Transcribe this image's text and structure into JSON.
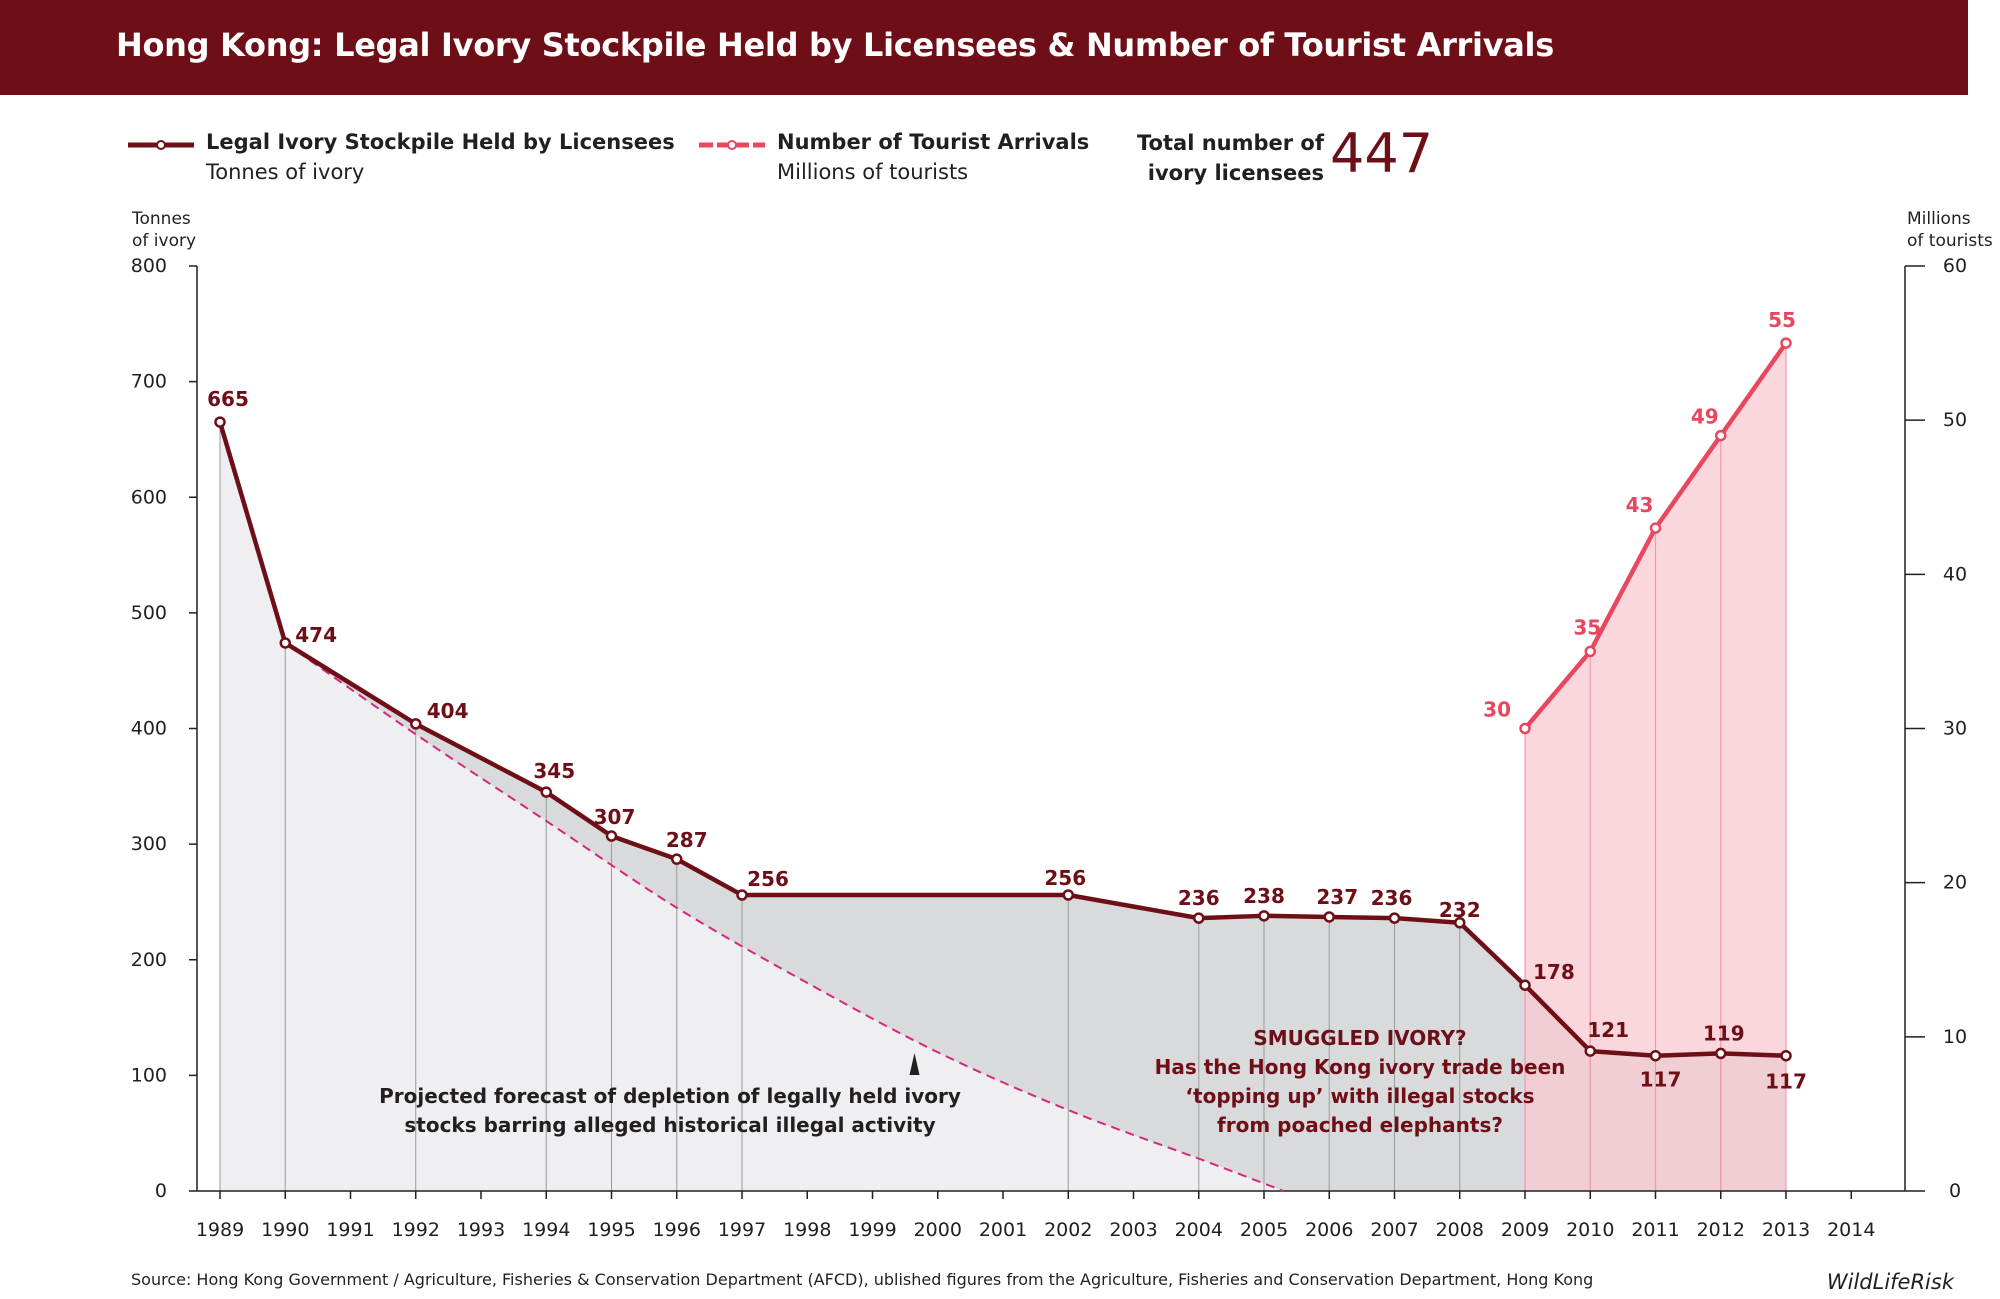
{
  "title": "Hong Kong: Legal Ivory Stockpile Held by Licensees & Number of Tourist Arrivals",
  "legend": {
    "stockpile_title": "Legal Ivory Stockpile Held by Licensees",
    "stockpile_unit": "Tonnes of ivory",
    "tourists_title": "Number of Tourist Arrivals",
    "tourists_unit": "Millions of tourists",
    "total_label_line1": "Total number of",
    "total_label_line2": "ivory licensees",
    "total_value": "447"
  },
  "axis_titles": {
    "left_line1": "Tonnes",
    "left_line2": "of ivory",
    "right_line1": "Millions",
    "right_line2": "of tourists"
  },
  "annotations": {
    "forecast_line1": "Projected forecast of depletion of legally held ivory",
    "forecast_line2": "stocks barring alleged historical illegal activity",
    "smuggled_line1": "SMUGGLED IVORY?",
    "smuggled_line2": "Has the Hong Kong ivory trade been",
    "smuggled_line3": "‘topping up’ with illegal stocks",
    "smuggled_line4": "from poached elephants?"
  },
  "source": "Source: Hong Kong Government / Agriculture, Fisheries & Conservation Department (AFCD), ublished figures from the Agriculture, Fisheries and Conservation Department, Hong Kong",
  "brand": "WildLifeRisk",
  "colors": {
    "banner": "#6e0f17",
    "stockpile": "#6e0f17",
    "tourists": "#e8475f",
    "forecast": "#d4287e",
    "stock_fill": "#d9dadc",
    "forecast_fill": "#efeff1",
    "tourist_fill": "#f8c9d0"
  },
  "chart_data": {
    "type": "line",
    "x_categories": [
      "1989",
      "1990",
      "1991",
      "1992",
      "1993",
      "1994",
      "1995",
      "1996",
      "1997",
      "1998",
      "1999",
      "2000",
      "2001",
      "2002",
      "2003",
      "2004",
      "2005",
      "2006",
      "2007",
      "2008",
      "2009",
      "2010",
      "2011",
      "2012",
      "2013",
      "2014"
    ],
    "y_left": {
      "label": "Tonnes of ivory",
      "range": [
        0,
        800
      ],
      "ticks": [
        0,
        100,
        200,
        300,
        400,
        500,
        600,
        700,
        800
      ]
    },
    "y_right": {
      "label": "Millions of tourists",
      "range": [
        0,
        60
      ],
      "ticks": [
        0,
        10,
        20,
        30,
        40,
        50,
        60
      ]
    },
    "series": [
      {
        "name": "Legal Ivory Stockpile Held by Licensees",
        "axis": "left",
        "points": [
          {
            "x": "1989",
            "y": 665
          },
          {
            "x": "1990",
            "y": 474
          },
          {
            "x": "1992",
            "y": 404
          },
          {
            "x": "1994",
            "y": 345
          },
          {
            "x": "1995",
            "y": 307
          },
          {
            "x": "1996",
            "y": 287
          },
          {
            "x": "1997",
            "y": 256
          },
          {
            "x": "2002",
            "y": 256
          },
          {
            "x": "2004",
            "y": 236
          },
          {
            "x": "2005",
            "y": 238
          },
          {
            "x": "2006",
            "y": 237
          },
          {
            "x": "2007",
            "y": 236
          },
          {
            "x": "2008",
            "y": 232
          },
          {
            "x": "2009",
            "y": 178
          },
          {
            "x": "2010",
            "y": 121
          },
          {
            "x": "2011",
            "y": 117
          },
          {
            "x": "2012",
            "y": 119
          },
          {
            "x": "2013",
            "y": 117
          }
        ]
      },
      {
        "name": "Number of Tourist Arrivals",
        "axis": "right",
        "points": [
          {
            "x": "2009",
            "y": 30
          },
          {
            "x": "2010",
            "y": 35
          },
          {
            "x": "2011",
            "y": 43
          },
          {
            "x": "2012",
            "y": 49
          },
          {
            "x": "2013",
            "y": 55
          }
        ]
      }
    ],
    "forecast": {
      "axis": "left",
      "points": [
        {
          "x": "1990",
          "y": 474
        },
        {
          "x": "1992",
          "y": 395
        },
        {
          "x": "1994",
          "y": 320
        },
        {
          "x": "1996",
          "y": 245
        },
        {
          "x": "1998",
          "y": 180
        },
        {
          "x": "2000",
          "y": 120
        },
        {
          "x": "2002",
          "y": 70
        },
        {
          "x": "2004",
          "y": 28
        },
        {
          "x": "2005.3",
          "y": 0
        }
      ]
    },
    "grid": false,
    "legend_position": "top"
  }
}
